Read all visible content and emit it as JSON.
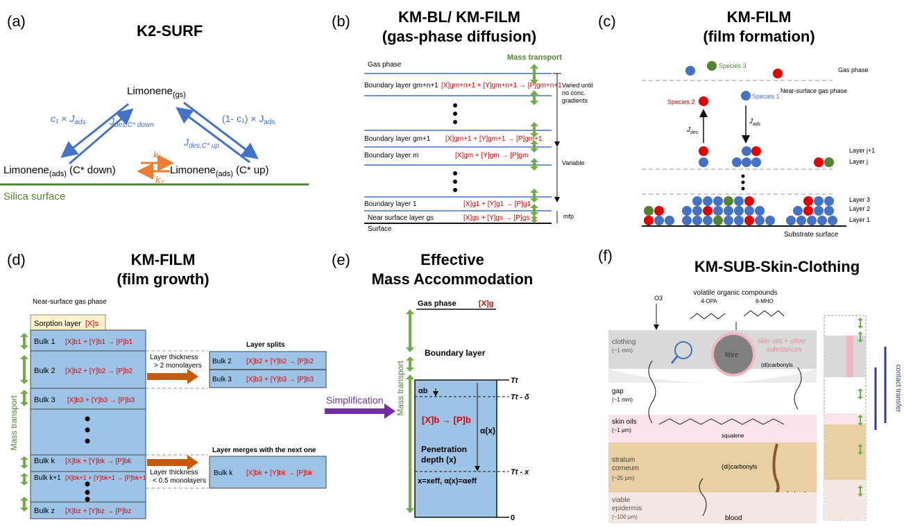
{
  "panels": {
    "a": {
      "label": "(a)",
      "title": "K2-SURF",
      "limonene_gs": "Limonene",
      "sub_gs": "(gs)",
      "limonene_ads_left": "Limonene",
      "sub_ads": "(ads)",
      "cstar_down": "(C* down)",
      "limonene_ads_right": "Limonene",
      "cstar_up": "(C* up)",
      "surface": "Silica surface",
      "c1jads": "c₁ × J",
      "c1jads_sub": "ads",
      "jdes_down": "J",
      "jdes_down_sub": "des,C* down",
      "jdes_up": "J",
      "jdes_up_sub": "des,C* up",
      "one_minus_c1": "(1- c₁) × J",
      "one_minus_c1_sub": "ads",
      "k1": "k₁",
      "k2": "k₂"
    },
    "b": {
      "label": "(b)",
      "title1": "KM-BL/ KM-FILM",
      "title2": "(gas-phase diffusion)",
      "mass_transport": "Mass transport",
      "gas_phase": "Gas phase",
      "bl_top": "Boundary layer gm+n+1",
      "bl_gm1": "Boundary layer gm+1",
      "bl_m": "Boundary layer m",
      "bl_1": "Boundary layer 1",
      "near_surface": "Near surface layer gs",
      "surface": "Surface",
      "varied": "Varied until",
      "varied2": "no conc.",
      "varied3": "gradients",
      "variable": "Variable",
      "mfp": "mfp",
      "rxn_top": "[X]gm+n+1 + [Y]gm+n+1 → [P]gm+n+1",
      "rxn_gm1": "[X]gm+1 + [Y]gm+1 → [P]gm+1",
      "rxn_m": "[X]gm + [Y]gm → [P]gm",
      "rxn_1": "[X]g1 + [Y]g1 → [P]g1",
      "rxn_gs": "[X]gs + [Y]gs → [P]gs"
    },
    "c": {
      "label": "(c)",
      "title1": "KM-FILM",
      "title2": "(film formation)",
      "species3": "Species 3",
      "species2": "Species 2",
      "species1": "Species 1",
      "gas_phase": "Gas phase",
      "near_surface_gas": "Near-surface  gas phase",
      "jdes": "J",
      "jdes_sub": "des",
      "jads": "J",
      "jads_sub": "ads",
      "layer_j1": "Layer j+1",
      "layer_j": "Layer j",
      "layer3": "Layer 3",
      "layer2": "Layer 2",
      "layer1": "Layer 1",
      "substrate": "Substrate surface"
    },
    "d": {
      "label": "(d)",
      "title1": "KM-FILM",
      "title2": "(film growth)",
      "near_surface": "Near-surface gas phase",
      "sorption": "Sorption layer",
      "sorption_x": "[X]s",
      "mass_transport": "Mass transport",
      "bulk1": "Bulk 1",
      "bulk2": "Bulk 2",
      "bulk3": "Bulk 3",
      "bulkk": "Bulk k",
      "bulkk1": "Bulk k+1",
      "bulkz": "Bulk z",
      "rxn1": "[X]b1 + [Y]b1 → [P]b1",
      "rxn2": "[X]b2 + [Y]b2 → [P]b2",
      "rxn3": "[X]b3 + [Y]b3 → [P]b3",
      "rxnk": "[X]bk + [Y]bk → [P]bk",
      "rxnk1": "[X]bk+1 + [Y]bk+1 → [P]bk+1",
      "rxnz": "[X]bz + [Y]bz → [P]bz",
      "thick1a": "Layer thickness",
      "thick1b": "> 2 monolayers",
      "thick2a": "Layer thickness",
      "thick2b": "< 0.5 monolayers",
      "splits": "Layer splits",
      "merges": "Layer merges with the next one",
      "split_bulk2": "Bulk 2",
      "split_bulk3": "Bulk 3",
      "merge_bulkk": "Bulk k"
    },
    "e": {
      "label": "(e)",
      "title1": "Effective",
      "title2": "Mass Accommodation",
      "gas_phase": "Gas phase",
      "xg": "[X]g",
      "boundary": "Boundary layer",
      "mass_transport": "Mass transport",
      "simplification": "Simplification",
      "alpha_b": "αb",
      "tt": "Tt",
      "tt_delta": "Tt - δ",
      "tt_x": "Tt - x",
      "zero": "0",
      "rxn": "[X]b → [P]b",
      "alpha_x": "α(x)",
      "pen1": "Penetration",
      "pen2": "depth (x)",
      "xeff": "x=xeff, α(x)=αeff"
    },
    "f": {
      "label": "(f)",
      "title": "KM-SUB-Skin-Clothing",
      "voc": "volatile organic compounds",
      "opa": "4-OPA",
      "mho": "6-MHO",
      "o3": "O3",
      "clothing": "clothing",
      "clothing_size": "(~1 mm)",
      "fibre": "fibre",
      "skin_oils_sub": "skin oils + other",
      "substances": "substances",
      "dicarb": "(di)carbonyls",
      "gap": "gap",
      "gap_size": "(~1 mm)",
      "skin_oils": "skin oils",
      "skin_oils_size": "(~1 μm)",
      "squalene": "squalene",
      "sc": "stratum",
      "sc2": "corneum",
      "sc_size": "(~25 μm)",
      "dicarb2": "(di)carbonyls",
      "oil_gland": "oil gland",
      "viable": "viable",
      "epidermis": "epidermis",
      "epi_size": "(~100 μm)",
      "blood": "blood",
      "contact": "contact transfer"
    }
  },
  "colors": {
    "blue": "#4472c4",
    "red": "#e00000",
    "green": "#70ad47",
    "orange": "#ed7d31",
    "purple": "#7030a0",
    "box": "#9dc3e6"
  }
}
